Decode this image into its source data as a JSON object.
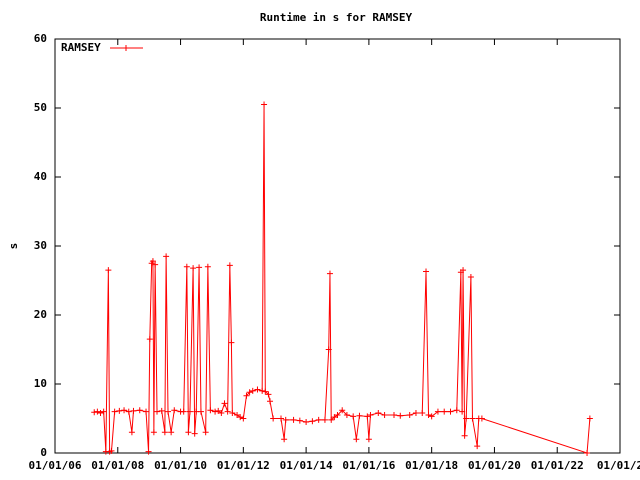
{
  "chart_data": {
    "type": "line",
    "title": "Runtime in s for RAMSEY",
    "y_label": "s",
    "x": [
      2007.25,
      2007.35,
      2007.45,
      2007.55,
      2007.62,
      2007.7,
      2007.74,
      2007.8,
      2007.9,
      2008.05,
      2008.2,
      2008.35,
      2008.45,
      2008.5,
      2008.7,
      2008.9,
      2008.98,
      2009.02,
      2009.08,
      2009.12,
      2009.15,
      2009.19,
      2009.25,
      2009.4,
      2009.5,
      2009.54,
      2009.6,
      2009.7,
      2009.8,
      2010.0,
      2010.1,
      2010.2,
      2010.25,
      2010.3,
      2010.4,
      2010.45,
      2010.5,
      2010.59,
      2010.65,
      2010.8,
      2010.87,
      2010.95,
      2011.1,
      2011.2,
      2011.3,
      2011.4,
      2011.5,
      2011.57,
      2011.62,
      2011.65,
      2011.8,
      2011.9,
      2012.0,
      2012.1,
      2012.2,
      2012.3,
      2012.45,
      2012.6,
      2012.66,
      2012.7,
      2012.8,
      2012.85,
      2012.95,
      2013.2,
      2013.3,
      2013.35,
      2013.6,
      2013.8,
      2014.0,
      2014.2,
      2014.4,
      2014.6,
      2014.72,
      2014.76,
      2014.8,
      2014.9,
      2015.0,
      2015.15,
      2015.3,
      2015.5,
      2015.6,
      2015.7,
      2015.95,
      2016.0,
      2016.05,
      2016.3,
      2016.5,
      2016.8,
      2017.0,
      2017.3,
      2017.5,
      2017.7,
      2017.82,
      2017.9,
      2018.0,
      2018.2,
      2018.4,
      2018.6,
      2018.8,
      2018.93,
      2018.97,
      2019.0,
      2019.05,
      2019.1,
      2019.25,
      2019.3,
      2019.45,
      2019.5,
      2019.6,
      2022.95,
      2023.04
    ],
    "series": [
      {
        "name": "RAMSEY",
        "color": "#ff0000",
        "values": [
          5.9,
          6,
          5.8,
          6,
          0.2,
          26.5,
          0.2,
          0.3,
          6,
          6.1,
          6.2,
          6,
          3,
          6.1,
          6.2,
          6,
          0.2,
          16.5,
          27.5,
          27.8,
          3,
          27.3,
          6,
          6.1,
          3,
          28.5,
          6,
          3,
          6.2,
          6,
          6,
          27,
          3,
          6,
          26.8,
          2.8,
          6,
          26.9,
          6,
          3,
          27,
          6.2,
          6,
          6.1,
          5.8,
          7.2,
          6,
          27.2,
          16,
          5.8,
          5.5,
          5.2,
          5,
          8.3,
          8.8,
          9,
          9.2,
          9,
          50.5,
          8.9,
          8.5,
          7.5,
          5,
          5,
          2,
          4.8,
          4.8,
          4.7,
          4.5,
          4.6,
          4.8,
          4.8,
          15,
          26,
          4.8,
          5.2,
          5.5,
          6.2,
          5.5,
          5.3,
          2,
          5.4,
          5.3,
          2,
          5.5,
          5.8,
          5.5,
          5.5,
          5.4,
          5.5,
          5.8,
          5.8,
          26.3,
          5.5,
          5.3,
          6,
          6,
          6,
          6.2,
          26.2,
          6,
          26.5,
          2.5,
          5,
          25.5,
          5,
          1,
          5,
          5,
          0,
          5
        ]
      }
    ],
    "xlim": [
      2006,
      2024
    ],
    "xticks": [
      {
        "value": 2006,
        "label": "01/01/06"
      },
      {
        "value": 2008,
        "label": "01/01/08"
      },
      {
        "value": 2010,
        "label": "01/01/10"
      },
      {
        "value": 2012,
        "label": "01/01/12"
      },
      {
        "value": 2014,
        "label": "01/01/14"
      },
      {
        "value": 2016,
        "label": "01/01/16"
      },
      {
        "value": 2018,
        "label": "01/01/18"
      },
      {
        "value": 2020,
        "label": "01/01/20"
      },
      {
        "value": 2022,
        "label": "01/01/22"
      },
      {
        "value": 2024,
        "label": "01/01/2"
      }
    ],
    "ylim": [
      0,
      60
    ],
    "yticks": [
      0,
      10,
      20,
      30,
      40,
      50,
      60
    ],
    "grid": false,
    "legend": "top-left"
  }
}
